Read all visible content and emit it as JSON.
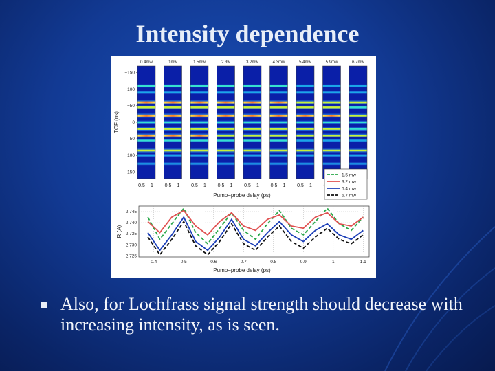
{
  "slide": {
    "title": "Intensity dependence",
    "bullet_text": "Also, for Lochfrass signal strength should decrease with increasing intensity, as is seen."
  },
  "chart_data": [
    {
      "type": "heatmap",
      "panels": [
        "0.4mw",
        "1mw",
        "1.5mw",
        "2.3w",
        "3.2mw",
        "4.3mw",
        "5.4mw",
        "5.9mw",
        "6.7mw"
      ],
      "xlabel": "Pump−probe delay (ps)",
      "ylabel": "TOF (ns)",
      "x_ticks": [
        "0.5",
        "1"
      ],
      "y_ticks": [
        -150,
        -100,
        -50,
        0,
        50,
        100,
        150
      ],
      "ylim": [
        -170,
        170
      ],
      "band_centers": [
        -110,
        -90,
        -60,
        -45,
        -20,
        0,
        20,
        40,
        55,
        85,
        100,
        125
      ],
      "band_strength": [
        0.45,
        0.35,
        0.95,
        0.7,
        1.0,
        0.5,
        0.7,
        0.9,
        0.45,
        0.8,
        0.35,
        0.25
      ]
    },
    {
      "type": "line",
      "xlabel": "Pump−probe delay (ps)",
      "ylabel": "R (A)",
      "xlim": [
        0.35,
        1.12
      ],
      "ylim": [
        2.7245,
        2.7475
      ],
      "x_ticks": [
        0.4,
        0.5,
        0.6,
        0.7,
        0.8,
        0.9,
        1,
        1.1
      ],
      "x_tick_labels": [
        "0.4",
        "0.5",
        "0.6",
        "0.7",
        "0.8",
        "0.9",
        "1",
        "1.1"
      ],
      "y_ticks": [
        2.725,
        2.73,
        2.735,
        2.74,
        2.745
      ],
      "legend_position": "top-right",
      "x": [
        0.38,
        0.42,
        0.46,
        0.5,
        0.54,
        0.58,
        0.62,
        0.66,
        0.7,
        0.74,
        0.78,
        0.82,
        0.86,
        0.9,
        0.94,
        0.98,
        1.02,
        1.06,
        1.1
      ],
      "series": [
        {
          "name": "1.5 mw",
          "color": "#2aa84a",
          "dash": "5,3",
          "values": [
            2.7425,
            2.7325,
            2.7395,
            2.7465,
            2.7355,
            2.7305,
            2.7375,
            2.7445,
            2.7365,
            2.7325,
            2.7395,
            2.7455,
            2.7375,
            2.7345,
            2.7405,
            2.7465,
            2.7395,
            2.7365,
            2.7425
          ]
        },
        {
          "name": "3.2 mw",
          "color": "#e05050",
          "dash": "",
          "values": [
            2.7405,
            2.7355,
            2.7425,
            2.7455,
            2.7385,
            2.7345,
            2.7405,
            2.7445,
            2.7385,
            2.7365,
            2.7415,
            2.7435,
            2.7385,
            2.7375,
            2.7425,
            2.7445,
            2.7395,
            2.7385,
            2.7425
          ]
        },
        {
          "name": "5.4 mw",
          "color": "#1c3fb8",
          "dash": "",
          "values": [
            2.7355,
            2.7275,
            2.7345,
            2.7425,
            2.7315,
            2.7275,
            2.7335,
            2.7415,
            2.7325,
            2.7295,
            2.7355,
            2.7405,
            2.7345,
            2.7315,
            2.7365,
            2.7395,
            2.7345,
            2.7325,
            2.7365
          ]
        },
        {
          "name": "6.7 mw",
          "color": "#111111",
          "dash": "5,3",
          "values": [
            2.7335,
            2.7255,
            2.7325,
            2.7405,
            2.7295,
            2.7255,
            2.7315,
            2.7395,
            2.7305,
            2.7275,
            2.7335,
            2.7385,
            2.7315,
            2.7285,
            2.7335,
            2.7375,
            2.7325,
            2.7305,
            2.7345
          ]
        }
      ]
    }
  ]
}
